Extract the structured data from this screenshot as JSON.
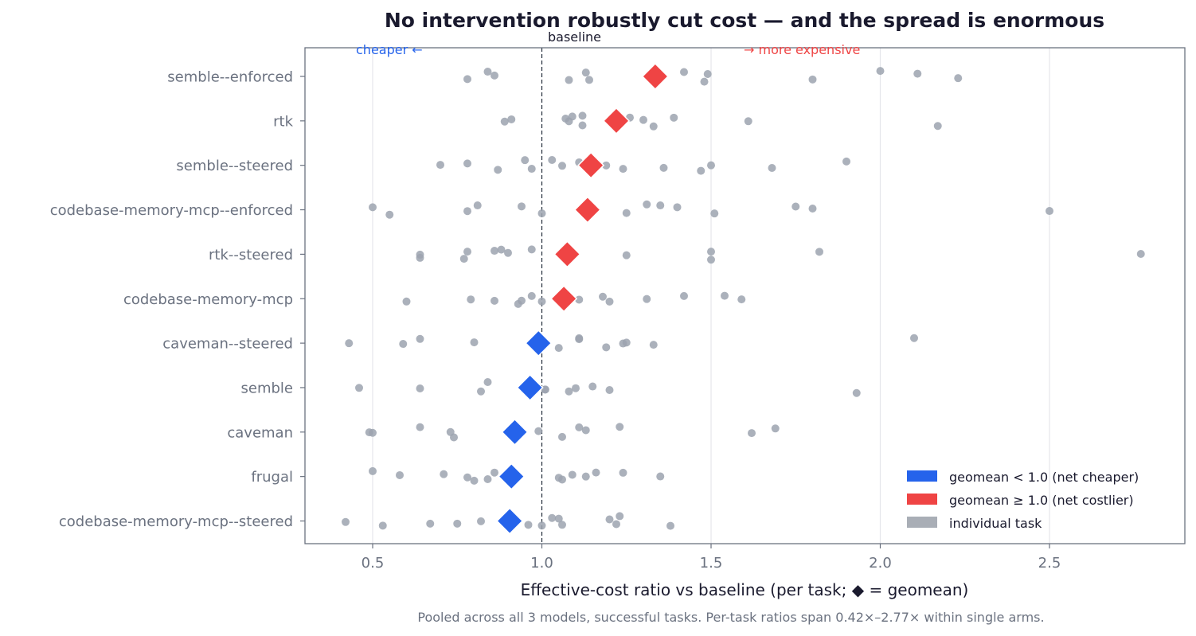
{
  "chart_data": {
    "type": "scatter",
    "title": "No intervention robustly cut cost — and the spread is enormous",
    "xlabel": "Effective-cost ratio vs baseline  (per task; ◆ = geomean)",
    "caption": "Pooled across all 3 models, successful tasks. Per-task ratios span 0.42×–2.77× within single arms.",
    "xlim": [
      0.3,
      2.9
    ],
    "xticks": [
      0.5,
      1.0,
      1.5,
      2.0,
      2.5
    ],
    "xtick_labels": [
      "0.5",
      "1.0",
      "1.5",
      "2.0",
      "2.5"
    ],
    "grid": true,
    "baseline": 1.0,
    "annotations": {
      "baseline": "baseline",
      "cheaper": "cheaper ←",
      "expensive": "→ more expensive"
    },
    "colors": {
      "cheaper": "#2563eb",
      "costlier": "#ef4444",
      "task": "#9ca3af"
    },
    "legend": {
      "position": "lower-right",
      "entries": [
        {
          "label": "geomean < 1.0 (net cheaper)",
          "color": "#2563eb"
        },
        {
          "label": "geomean ≥ 1.0 (net costlier)",
          "color": "#ef4444"
        },
        {
          "label": "individual task",
          "color": "#a9aeb6"
        }
      ]
    },
    "categories": [
      "semble--enforced",
      "rtk",
      "semble--steered",
      "codebase-memory-mcp--enforced",
      "rtk--steered",
      "codebase-memory-mcp",
      "caveman--steered",
      "semble",
      "caveman",
      "frugal",
      "codebase-memory-mcp--steered"
    ],
    "series": [
      {
        "category": "semble--enforced",
        "geomean": 1.335,
        "points": [
          0.78,
          0.84,
          0.86,
          1.08,
          1.13,
          1.14,
          1.42,
          1.48,
          1.49,
          1.8,
          2.0,
          2.11,
          2.23
        ]
      },
      {
        "category": "rtk",
        "geomean": 1.22,
        "points": [
          0.89,
          0.91,
          1.07,
          1.08,
          1.09,
          1.12,
          1.12,
          1.26,
          1.3,
          1.33,
          1.39,
          1.61,
          2.17
        ]
      },
      {
        "category": "semble--steered",
        "geomean": 1.145,
        "points": [
          0.7,
          0.78,
          0.87,
          0.95,
          0.97,
          1.03,
          1.06,
          1.11,
          1.19,
          1.24,
          1.36,
          1.47,
          1.5,
          1.68,
          1.9
        ]
      },
      {
        "category": "codebase-memory-mcp--enforced",
        "geomean": 1.135,
        "points": [
          0.5,
          0.55,
          0.78,
          0.81,
          0.94,
          1.0,
          1.25,
          1.31,
          1.35,
          1.4,
          1.51,
          1.75,
          1.8,
          2.5
        ]
      },
      {
        "category": "rtk--steered",
        "geomean": 1.075,
        "points": [
          0.64,
          0.64,
          0.77,
          0.78,
          0.86,
          0.88,
          0.9,
          0.97,
          1.25,
          1.5,
          1.5,
          1.82,
          2.77
        ]
      },
      {
        "category": "codebase-memory-mcp",
        "geomean": 1.065,
        "points": [
          0.6,
          0.79,
          0.86,
          0.93,
          0.94,
          0.97,
          1.0,
          1.11,
          1.18,
          1.2,
          1.31,
          1.42,
          1.54,
          1.59
        ]
      },
      {
        "category": "caveman--steered",
        "geomean": 0.99,
        "points": [
          0.43,
          0.59,
          0.64,
          0.8,
          1.05,
          1.11,
          1.11,
          1.19,
          1.24,
          1.25,
          1.33,
          2.1
        ]
      },
      {
        "category": "semble",
        "geomean": 0.965,
        "points": [
          0.46,
          0.64,
          0.82,
          0.84,
          1.01,
          1.01,
          1.08,
          1.1,
          1.15,
          1.2,
          1.93
        ]
      },
      {
        "category": "caveman",
        "geomean": 0.92,
        "points": [
          0.49,
          0.5,
          0.64,
          0.73,
          0.74,
          0.99,
          1.06,
          1.11,
          1.13,
          1.23,
          1.62,
          1.69
        ]
      },
      {
        "category": "frugal",
        "geomean": 0.91,
        "points": [
          0.5,
          0.58,
          0.71,
          0.78,
          0.8,
          0.84,
          0.86,
          1.05,
          1.06,
          1.09,
          1.13,
          1.16,
          1.24,
          1.35
        ]
      },
      {
        "category": "codebase-memory-mcp--steered",
        "geomean": 0.905,
        "points": [
          0.42,
          0.53,
          0.67,
          0.75,
          0.82,
          0.96,
          1.0,
          1.03,
          1.05,
          1.06,
          1.2,
          1.22,
          1.23,
          1.38
        ]
      }
    ]
  }
}
